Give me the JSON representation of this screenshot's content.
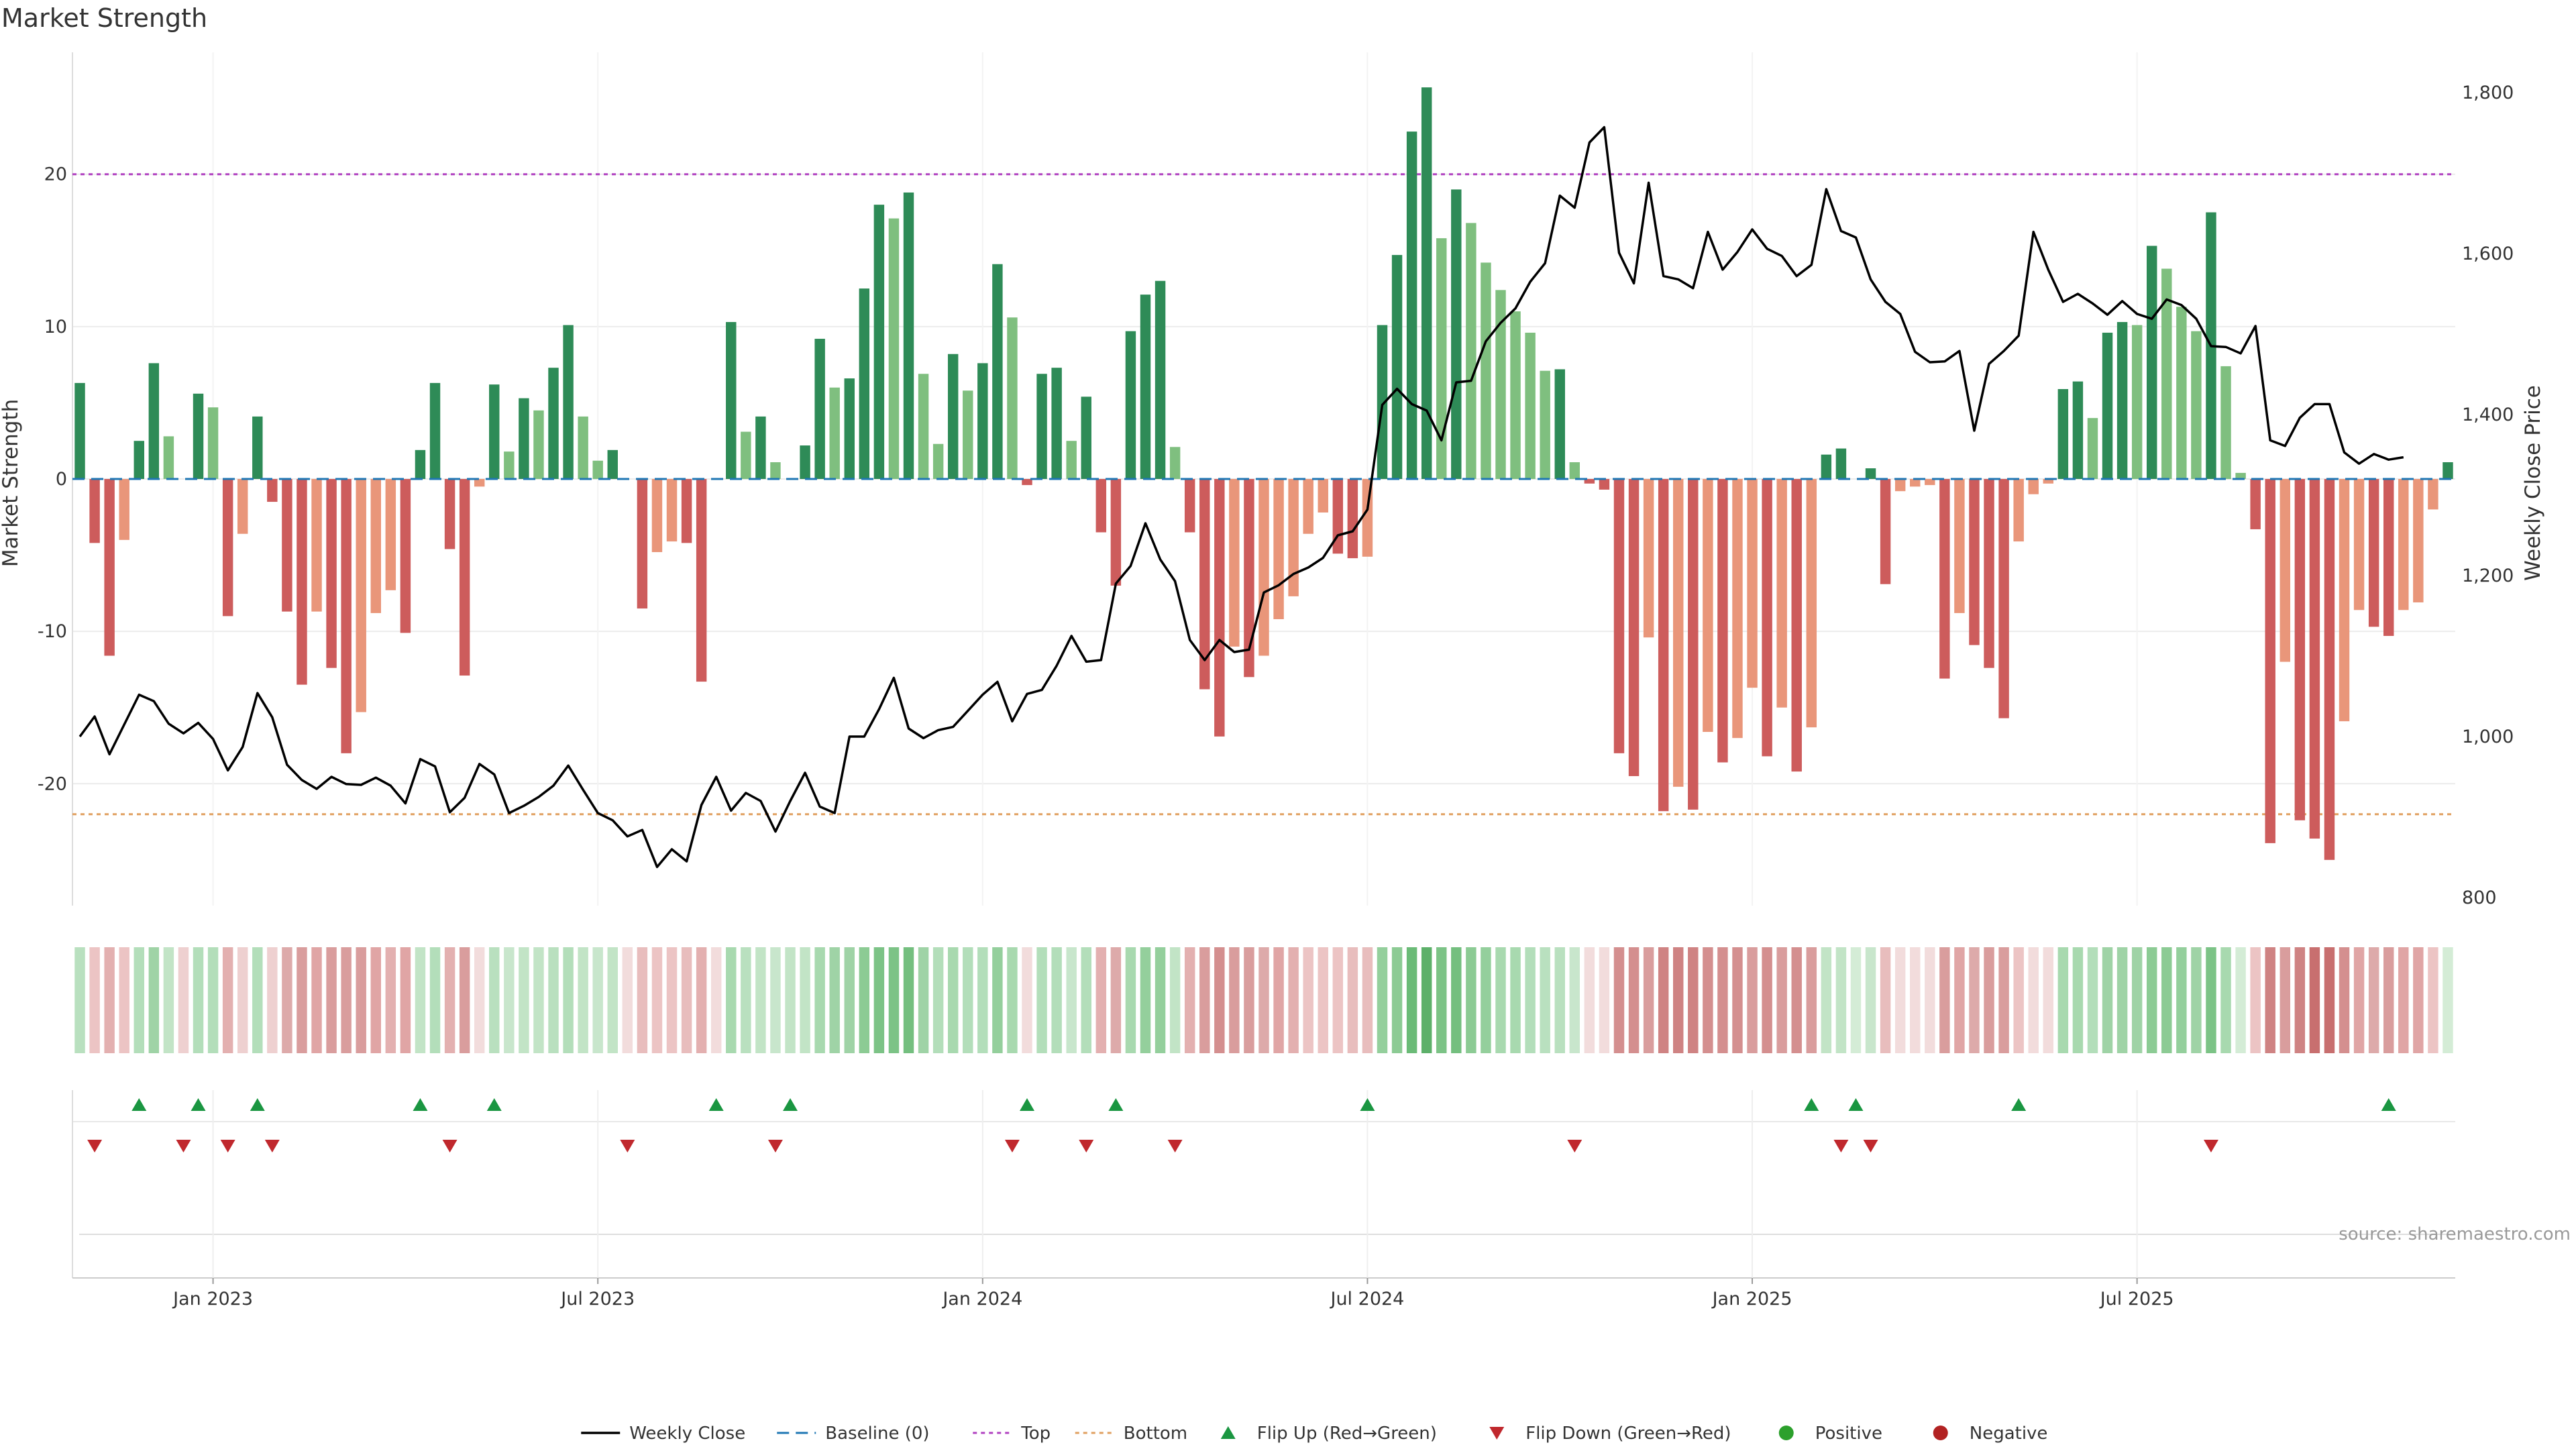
{
  "chart_data": {
    "type": "bar+line",
    "title": "Market Strength",
    "ylabel_left": "Market Strength",
    "ylabel_right": "Weekly Close Price",
    "source": "source: sharemaestro.com",
    "left_ylim": [
      -28,
      28
    ],
    "right_ylim": [
      790,
      1850
    ],
    "left_ticks": [
      20,
      10,
      0,
      -10,
      -20
    ],
    "right_ticks": [
      "1,800",
      "1,600",
      "1,400",
      "1,200",
      "1,000",
      "800"
    ],
    "right_tick_values": [
      1800,
      1600,
      1400,
      1200,
      1000,
      800
    ],
    "top_level": 20,
    "bottom_level": -22,
    "x_labels": [
      "Jan 2023",
      "Jul 2023",
      "Jan 2024",
      "Jul 2024",
      "Jan 2025",
      "Jul 2025"
    ],
    "x_label_week_index": [
      9,
      35,
      61,
      87,
      113,
      139
    ],
    "strength": [
      6.3,
      -4.2,
      -11.6,
      -4,
      2.5,
      7.6,
      2.8,
      0,
      5.6,
      4.7,
      -9,
      -3.6,
      4.1,
      -1.5,
      -8.7,
      -13.5,
      -8.7,
      -12.4,
      -18,
      -15.3,
      -8.8,
      -7.3,
      -10.1,
      1.9,
      6.3,
      -4.6,
      -12.9,
      -0.5,
      6.2,
      1.8,
      5.3,
      4.5,
      7.3,
      10.1,
      4.1,
      1.2,
      1.9,
      0,
      -8.5,
      -4.8,
      -4.1,
      -4.2,
      -13.3,
      0,
      10.3,
      3.1,
      4.1,
      1.1,
      0,
      2.2,
      9.2,
      6,
      6.6,
      12.5,
      18,
      17.1,
      18.8,
      6.9,
      2.3,
      8.2,
      5.8,
      7.6,
      14.1,
      10.6,
      -0.4,
      6.9,
      7.3,
      2.5,
      5.4,
      -3.5,
      -7,
      9.7,
      12.1,
      13,
      2.1,
      -3.5,
      -13.8,
      -16.9,
      -11,
      -13,
      -11.6,
      -9.2,
      -7.7,
      -3.6,
      -2.2,
      -4.9,
      -5.2,
      -5.1,
      10.1,
      14.7,
      22.8,
      25.7,
      15.8,
      19,
      16.8,
      14.2,
      12.4,
      11,
      9.6,
      7.1,
      7.2,
      1.1,
      -0.3,
      -0.7,
      -18,
      -19.5,
      -10.4,
      -21.8,
      -20.2,
      -21.7,
      -16.6,
      -18.6,
      -17,
      -13.7,
      -18.2,
      -15,
      -19.2,
      -16.3,
      1.6,
      2,
      0,
      0.7,
      -6.9,
      -0.8,
      -0.5,
      -0.4,
      -13.1,
      -8.8,
      -10.9,
      -12.4,
      -15.7,
      -4.1,
      -1,
      -0.3,
      5.9,
      6.4,
      4,
      9.6,
      10.3,
      10.1,
      15.3,
      13.8,
      11.3,
      9.7,
      17.5,
      7.4,
      0.4,
      -3.3,
      -23.9,
      -12,
      -22.4,
      -23.6,
      -25,
      -15.9,
      -8.6,
      -9.7,
      -10.3,
      -8.6,
      -8.1,
      -2,
      1.1
    ],
    "weekly_close": [
      1000,
      1025,
      978,
      1015,
      1052,
      1044,
      1016,
      1004,
      1017,
      997,
      958,
      987,
      1054,
      1024,
      965,
      946,
      935,
      950,
      941,
      940,
      949,
      939,
      917,
      972,
      963,
      906,
      924,
      966,
      953,
      905,
      914,
      925,
      939,
      964,
      934,
      905,
      896,
      876,
      884,
      838,
      860,
      845,
      915,
      950,
      908,
      930,
      920,
      882,
      920,
      955,
      913,
      905,
      1000,
      1000,
      1034,
      1073,
      1010,
      998,
      1008,
      1012,
      1032,
      1052,
      1068,
      1019,
      1053,
      1058,
      1088,
      1125,
      1093,
      1095,
      1190,
      1212,
      1265,
      1220,
      1193,
      1120,
      1095,
      1120,
      1105,
      1108,
      1179,
      1188,
      1202,
      1210,
      1222,
      1250,
      1255,
      1282,
      1412,
      1432,
      1413,
      1405,
      1368,
      1440,
      1442,
      1491,
      1514,
      1532,
      1565,
      1588,
      1672,
      1657,
      1738,
      1757,
      1601,
      1563,
      1688,
      1572,
      1568,
      1557,
      1627,
      1580,
      1602,
      1630,
      1606,
      1597,
      1572,
      1586,
      1680,
      1628,
      1620,
      1568,
      1540,
      1525,
      1478,
      1465,
      1466,
      1479,
      1380,
      1463,
      1479,
      1498,
      1627,
      1580,
      1540,
      1550,
      1538,
      1524,
      1541,
      1525,
      1519,
      1543,
      1536,
      1519,
      1485,
      1484,
      1476,
      1510,
      1368,
      1361,
      1396,
      1413,
      1413,
      1353,
      1339,
      1351,
      1344,
      1347
    ],
    "heat_colors": [
      "#b9e0bf",
      "#ecc4c4",
      "#e3b0b0",
      "#ecc4c4",
      "#b3deba",
      "#9fd3a6",
      "#c2e4c6",
      "#eed0d0",
      "#b3deba",
      "#b3deba",
      "#e3b0b0",
      "#eed0d0",
      "#b3deba",
      "#eed0d0",
      "#ddaaaa",
      "#d99d9d",
      "#e0a5a5",
      "#d99d9d",
      "#d99d9d",
      "#d99d9d",
      "#e0a5a5",
      "#e3b0b0",
      "#e0a5a5",
      "#c2e4c6",
      "#b3deba",
      "#e3b0b0",
      "#d99d9d",
      "#f2dcdc",
      "#b9e0bf",
      "#c8e6cc",
      "#c2e4c6",
      "#c2e4c6",
      "#b9e0bf",
      "#b3deba",
      "#c2e4c6",
      "#c8e6cc",
      "#c2e4c6",
      "#f2dcdc",
      "#e8bdbd",
      "#ecc4c4",
      "#ecc4c4",
      "#e8bdbd",
      "#e3b0b0",
      "#f2dcdc",
      "#a8d9af",
      "#b9e0bf",
      "#c2e4c6",
      "#c8e6cc",
      "#c2e4c6",
      "#c2e4c6",
      "#a8d9af",
      "#9fd3a6",
      "#9fd3a6",
      "#8ccb94",
      "#7cc386",
      "#7cc386",
      "#74bf7f",
      "#9fd3a6",
      "#b3deba",
      "#a8d9af",
      "#b3deba",
      "#b3deba",
      "#94cf9c",
      "#a8d9af",
      "#f2dcdc",
      "#b3deba",
      "#b3deba",
      "#c8e6cc",
      "#b3deba",
      "#e3b0b0",
      "#ddaaaa",
      "#a8d9af",
      "#94cf9c",
      "#94cf9c",
      "#c2e4c6",
      "#e3b0b0",
      "#d99d9d",
      "#d48f8f",
      "#d99d9d",
      "#d99d9d",
      "#ddaaaa",
      "#e0a5a5",
      "#e3b0b0",
      "#ecc4c4",
      "#ecc4c4",
      "#ecc4c4",
      "#e8bdbd",
      "#e8bdbd",
      "#94cf9c",
      "#8ccb94",
      "#6bbb77",
      "#5db06a",
      "#7cc386",
      "#74bf7f",
      "#8ccb94",
      "#94cf9c",
      "#a8d9af",
      "#a8d9af",
      "#b3deba",
      "#b9e0bf",
      "#b9e0bf",
      "#c8e6cc",
      "#f2dcdc",
      "#f2dcdc",
      "#d48f8f",
      "#d48f8f",
      "#d99d9d",
      "#cf8383",
      "#cf8383",
      "#cf8383",
      "#d48f8f",
      "#d48f8f",
      "#d48f8f",
      "#d99d9d",
      "#d48f8f",
      "#d99d9d",
      "#d48f8f",
      "#d99d9d",
      "#c2e4c6",
      "#c2e4c6",
      "#d4ecd6",
      "#c8e6cc",
      "#e8bdbd",
      "#f2dcdc",
      "#f2dcdc",
      "#f2dcdc",
      "#d99d9d",
      "#e0a5a5",
      "#ddaaaa",
      "#d99d9d",
      "#d99d9d",
      "#ecc4c4",
      "#f2dcdc",
      "#f2dcdc",
      "#a8d9af",
      "#a8d9af",
      "#b3deba",
      "#9fd3a6",
      "#9fd3a6",
      "#9fd3a6",
      "#8ccb94",
      "#8ccb94",
      "#94cf9c",
      "#9fd3a6",
      "#7cc386",
      "#a8d9af",
      "#d4ecd6",
      "#ecc4c4",
      "#cf8383",
      "#d99d9d",
      "#cf8383",
      "#c86f6f",
      "#c86f6f",
      "#d48f8f",
      "#e0a5a5",
      "#ddaaaa",
      "#d99d9d",
      "#e0a5a5",
      "#e0a5a5",
      "#ecc4c4",
      "#d4ecd6"
    ],
    "flip_up_weeks": [
      4,
      8,
      12,
      23,
      28,
      43,
      48,
      64,
      70,
      87,
      117,
      120,
      131,
      156
    ],
    "flip_down_weeks": [
      1,
      7,
      10,
      13,
      25,
      37,
      47,
      63,
      68,
      74,
      101,
      119,
      121,
      144
    ],
    "colors": {
      "pos_strong": "#2e8b57",
      "pos_weak": "#7fbf7f",
      "neg_strong": "#cd5c5c",
      "neg_weak": "#e9967a",
      "line": "#000000",
      "baseline": "#1f77b4",
      "top": "#b040c0",
      "bottom": "#e0a060",
      "flip_up": "#1a9641",
      "flip_down": "#c0282d",
      "positive_dot": "#2ca02c",
      "negative_dot": "#b22222"
    },
    "legend": [
      {
        "key": "line",
        "label": "Weekly Close"
      },
      {
        "key": "baseline",
        "label": "Baseline (0)"
      },
      {
        "key": "top",
        "label": "Top"
      },
      {
        "key": "bottom",
        "label": "Bottom"
      },
      {
        "key": "flip_up",
        "label": "Flip Up (Red→Green)"
      },
      {
        "key": "flip_down",
        "label": "Flip Down (Green→Red)"
      },
      {
        "key": "positive_dot",
        "label": "Positive"
      },
      {
        "key": "negative_dot",
        "label": "Negative"
      }
    ]
  }
}
